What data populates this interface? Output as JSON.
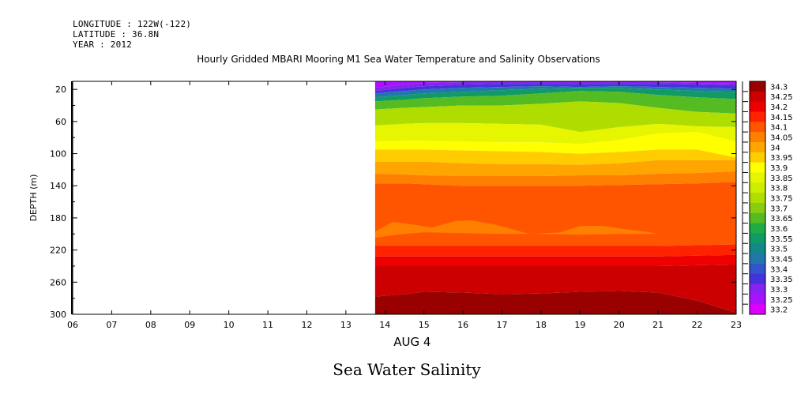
{
  "header": {
    "longitude": "LONGITUDE : 122W(-122)",
    "latitude": "LATITUDE : 36.8N",
    "year": "YEAR : 2012"
  },
  "chart_title": "Hourly Gridded MBARI Mooring M1 Sea Water Temperature and Salinity Observations",
  "footer_title": "Sea Water Salinity",
  "chart_data": {
    "type": "heatmap",
    "variable": "Sea Water Salinity",
    "xlabel": "AUG  4",
    "ylabel": "DEPTH (m)",
    "x_ticks": [
      "06",
      "07",
      "08",
      "09",
      "10",
      "11",
      "12",
      "13",
      "14",
      "15",
      "16",
      "17",
      "18",
      "19",
      "20",
      "21",
      "22",
      "23"
    ],
    "y_ticks": [
      20,
      60,
      100,
      140,
      180,
      220,
      260,
      300
    ],
    "xlim": [
      6,
      23
    ],
    "ylim": [
      300,
      10
    ],
    "y_inverted": true,
    "data_start_hour": 13.75,
    "grid": false,
    "legend_position": "right",
    "colorbar_levels": [
      "34.3",
      "34.25",
      "34.2",
      "34.15",
      "34.1",
      "34.05",
      "34",
      "33.95",
      "33.9",
      "33.85",
      "33.8",
      "33.75",
      "33.7",
      "33.65",
      "33.6",
      "33.55",
      "33.5",
      "33.45",
      "33.4",
      "33.35",
      "33.3",
      "33.25",
      "33.2"
    ],
    "colorbar_colors": [
      "#990000",
      "#cc0000",
      "#ee0000",
      "#ff2200",
      "#ff5500",
      "#ff7f00",
      "#ffa500",
      "#ffcc00",
      "#ffff00",
      "#e6f500",
      "#ccee00",
      "#b0dd00",
      "#88cc11",
      "#55bb22",
      "#22aa44",
      "#119966",
      "#128888",
      "#2277aa",
      "#3355cc",
      "#4433dd",
      "#8822ee",
      "#aa11ff",
      "#dd00ff"
    ],
    "hours": [
      13.75,
      14.5,
      15,
      16,
      17,
      18,
      19,
      20,
      21,
      22,
      23
    ],
    "isolines": {
      "33.3": [
        18,
        14,
        12,
        11,
        11,
        11,
        11,
        11,
        11,
        12,
        13
      ],
      "33.35": [
        22,
        18,
        16,
        14,
        13,
        13,
        13,
        13,
        13,
        14,
        15
      ],
      "33.45": [
        25,
        22,
        20,
        18,
        17,
        16,
        17,
        16,
        17,
        18,
        19
      ],
      "33.55": [
        30,
        27,
        25,
        23,
        21,
        19,
        18,
        18,
        20,
        22,
        23
      ],
      "33.65": [
        35,
        33,
        31,
        29,
        28,
        25,
        22,
        23,
        27,
        30,
        32
      ],
      "33.75": [
        45,
        43,
        42,
        40,
        40,
        38,
        35,
        37,
        43,
        48,
        50
      ],
      "33.85": [
        65,
        63,
        62,
        62,
        63,
        64,
        73,
        67,
        63,
        66,
        67
      ],
      "33.9": [
        85,
        84,
        84,
        85,
        86,
        86,
        88,
        83,
        75,
        73,
        85
      ],
      "33.95": [
        95,
        95,
        95,
        96,
        97,
        98,
        100,
        98,
        95,
        95,
        105
      ],
      "34": [
        110,
        110,
        110,
        112,
        113,
        113,
        114,
        112,
        108,
        108,
        108
      ],
      "34.05": [
        125,
        126,
        127,
        128,
        128,
        128,
        127,
        127,
        125,
        124,
        122
      ],
      "34.1": [
        137,
        137,
        138,
        140,
        140,
        140,
        140,
        139,
        138,
        137,
        135
      ],
      "34.15": [
        215,
        215,
        215,
        215,
        215,
        215,
        215,
        215,
        215,
        214,
        213
      ],
      "34.2": [
        228,
        228,
        228,
        228,
        228,
        228,
        228,
        228,
        228,
        227,
        226
      ],
      "34.25": [
        240,
        240,
        240,
        240,
        240,
        240,
        240,
        240,
        240,
        239,
        238
      ],
      "34.3": [
        278,
        275,
        272,
        273,
        275,
        274,
        272,
        271,
        273,
        283,
        298
      ]
    },
    "tongue_34.05": {
      "upper": [
        [
          13.75,
          197
        ],
        [
          14.2,
          185
        ],
        [
          14.7,
          188
        ],
        [
          15.2,
          192
        ],
        [
          15.8,
          184
        ],
        [
          16.2,
          183
        ],
        [
          16.8,
          188
        ],
        [
          17.4,
          196
        ],
        [
          17.7,
          200
        ],
        [
          18.5,
          198
        ],
        [
          19,
          190
        ],
        [
          19.6,
          190
        ],
        [
          20,
          193
        ],
        [
          20.8,
          198
        ],
        [
          21,
          200
        ]
      ],
      "lower": [
        [
          21,
          200
        ],
        [
          20,
          200
        ],
        [
          19,
          201
        ],
        [
          18,
          200
        ],
        [
          17.7,
          200
        ],
        [
          17,
          200
        ],
        [
          16,
          199
        ],
        [
          15,
          198
        ],
        [
          14.5,
          200
        ],
        [
          14,
          203
        ],
        [
          13.75,
          205
        ]
      ]
    }
  }
}
